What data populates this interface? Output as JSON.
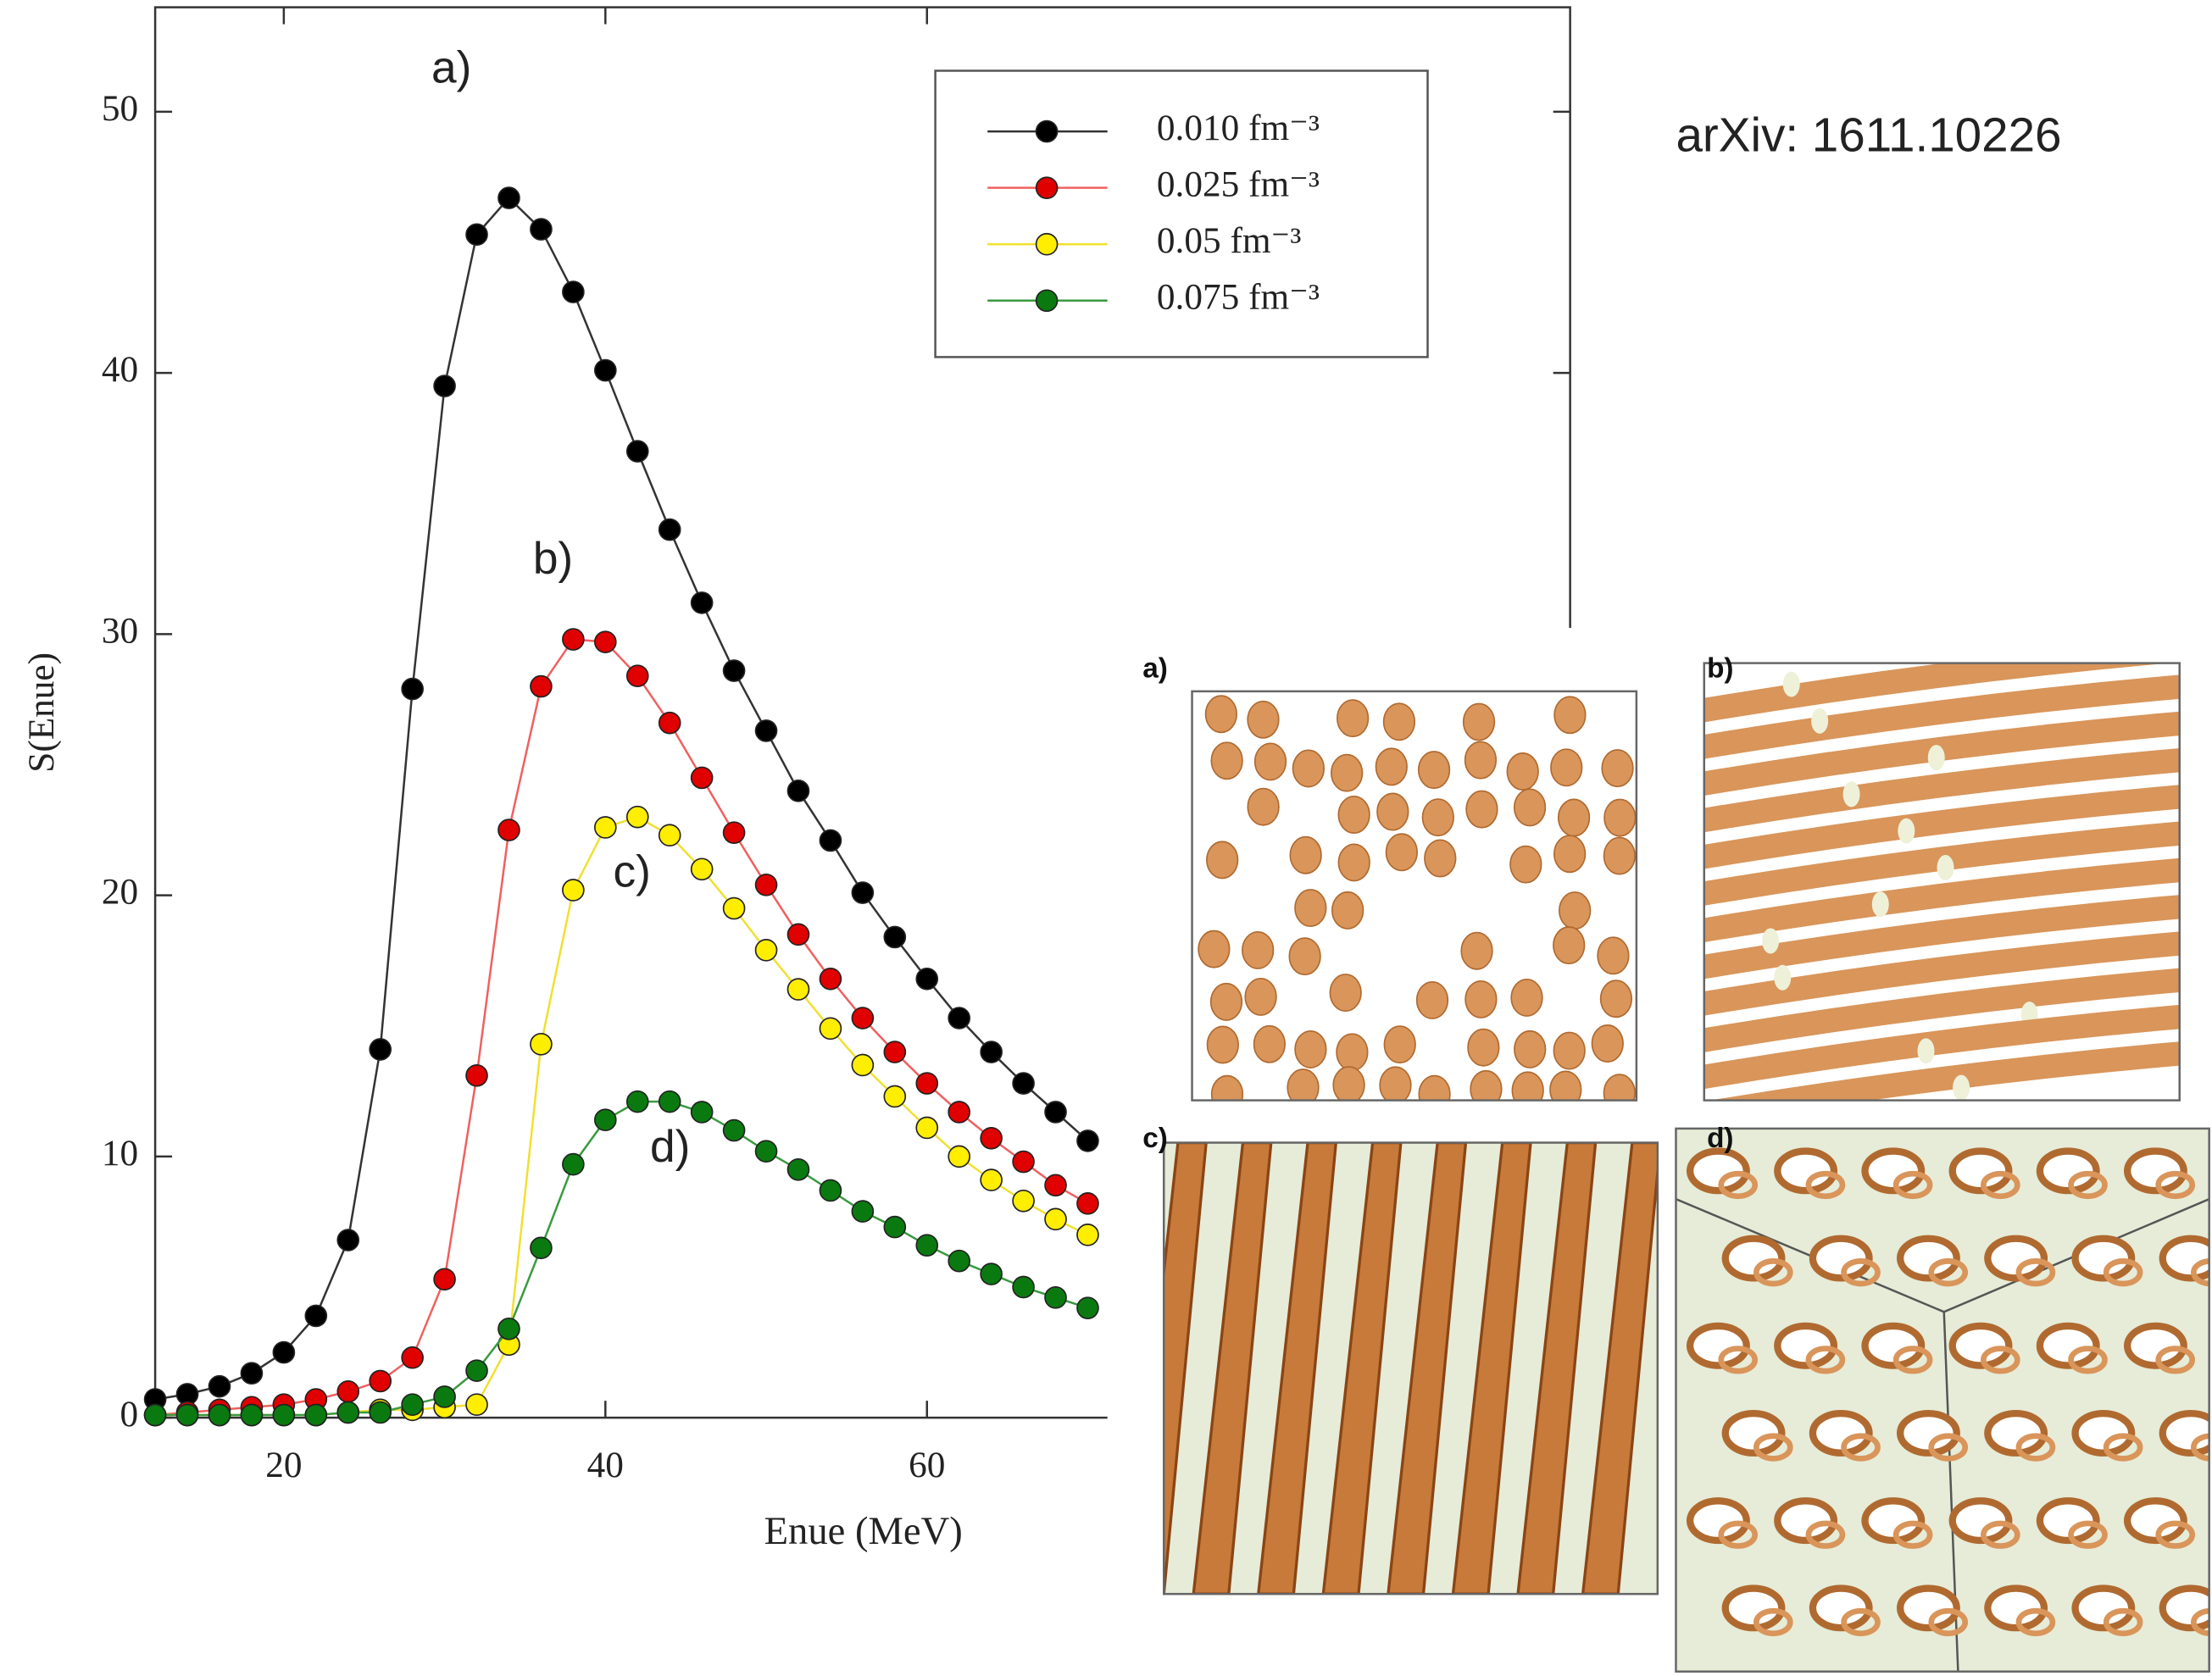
{
  "chart_data": {
    "type": "line",
    "x_label": "Enue (MeV)",
    "y_label": "S(Enue)",
    "x": [
      12,
      14,
      16,
      18,
      20,
      22,
      24,
      26,
      28,
      30,
      32,
      34,
      36,
      38,
      40,
      42,
      44,
      46,
      48,
      50,
      52,
      54,
      56,
      58,
      60,
      62,
      64,
      66,
      68,
      70
    ],
    "series": [
      {
        "name": "0.010 fm⁻³",
        "color": "#000000",
        "line_color": "#333333",
        "values": [
          0.7,
          0.9,
          1.2,
          1.7,
          2.5,
          3.9,
          6.8,
          14.1,
          27.9,
          39.5,
          45.3,
          46.7,
          45.5,
          43.1,
          40.1,
          37.0,
          34.0,
          31.2,
          28.6,
          26.3,
          24.0,
          22.1,
          20.1,
          18.4,
          16.8,
          15.3,
          14.0,
          12.8,
          11.7,
          10.6
        ]
      },
      {
        "name": "0.025 fm⁻³",
        "color": "#e00000",
        "line_color": "#f06060",
        "values": [
          0.1,
          0.2,
          0.3,
          0.4,
          0.5,
          0.7,
          1.0,
          1.4,
          2.3,
          5.3,
          13.1,
          22.5,
          28.0,
          29.8,
          29.7,
          28.4,
          26.6,
          24.5,
          22.4,
          20.4,
          18.5,
          16.8,
          15.3,
          14.0,
          12.8,
          11.7,
          10.7,
          9.8,
          8.9,
          8.2
        ]
      },
      {
        "name": "0.05 fm⁻³",
        "color": "#ffee00",
        "line_color": "#f0e030",
        "values": [
          0.1,
          0.1,
          0.1,
          0.1,
          0.1,
          0.1,
          0.2,
          0.3,
          0.3,
          0.4,
          0.5,
          2.8,
          14.3,
          20.2,
          22.6,
          23.0,
          22.3,
          21.0,
          19.5,
          17.9,
          16.4,
          14.9,
          13.5,
          12.3,
          11.1,
          10.0,
          9.1,
          8.3,
          7.6,
          7.0
        ]
      },
      {
        "name": "0.075 fm⁻³",
        "color": "#0a7a10",
        "line_color": "#3a9a40",
        "values": [
          0.1,
          0.1,
          0.1,
          0.1,
          0.1,
          0.1,
          0.2,
          0.2,
          0.5,
          0.8,
          1.8,
          3.4,
          6.5,
          9.7,
          11.4,
          12.1,
          12.1,
          11.7,
          11.0,
          10.2,
          9.5,
          8.7,
          7.9,
          7.3,
          6.6,
          6.0,
          5.5,
          5.0,
          4.6,
          4.2
        ]
      }
    ],
    "annotations": [
      "a)",
      "b)",
      "c)",
      "d)"
    ],
    "xlim": [
      12,
      100
    ],
    "xticks": [
      20,
      40,
      60
    ],
    "ylim": [
      0,
      54
    ],
    "yticks": [
      0,
      10,
      20,
      30,
      40,
      50
    ],
    "legend": "top-right"
  },
  "note": "arXiv: 1611.10226",
  "figure": {
    "panels": [
      {
        "label": "a)"
      },
      {
        "label": "b)"
      },
      {
        "label": "c)"
      },
      {
        "label": "d)"
      }
    ]
  }
}
